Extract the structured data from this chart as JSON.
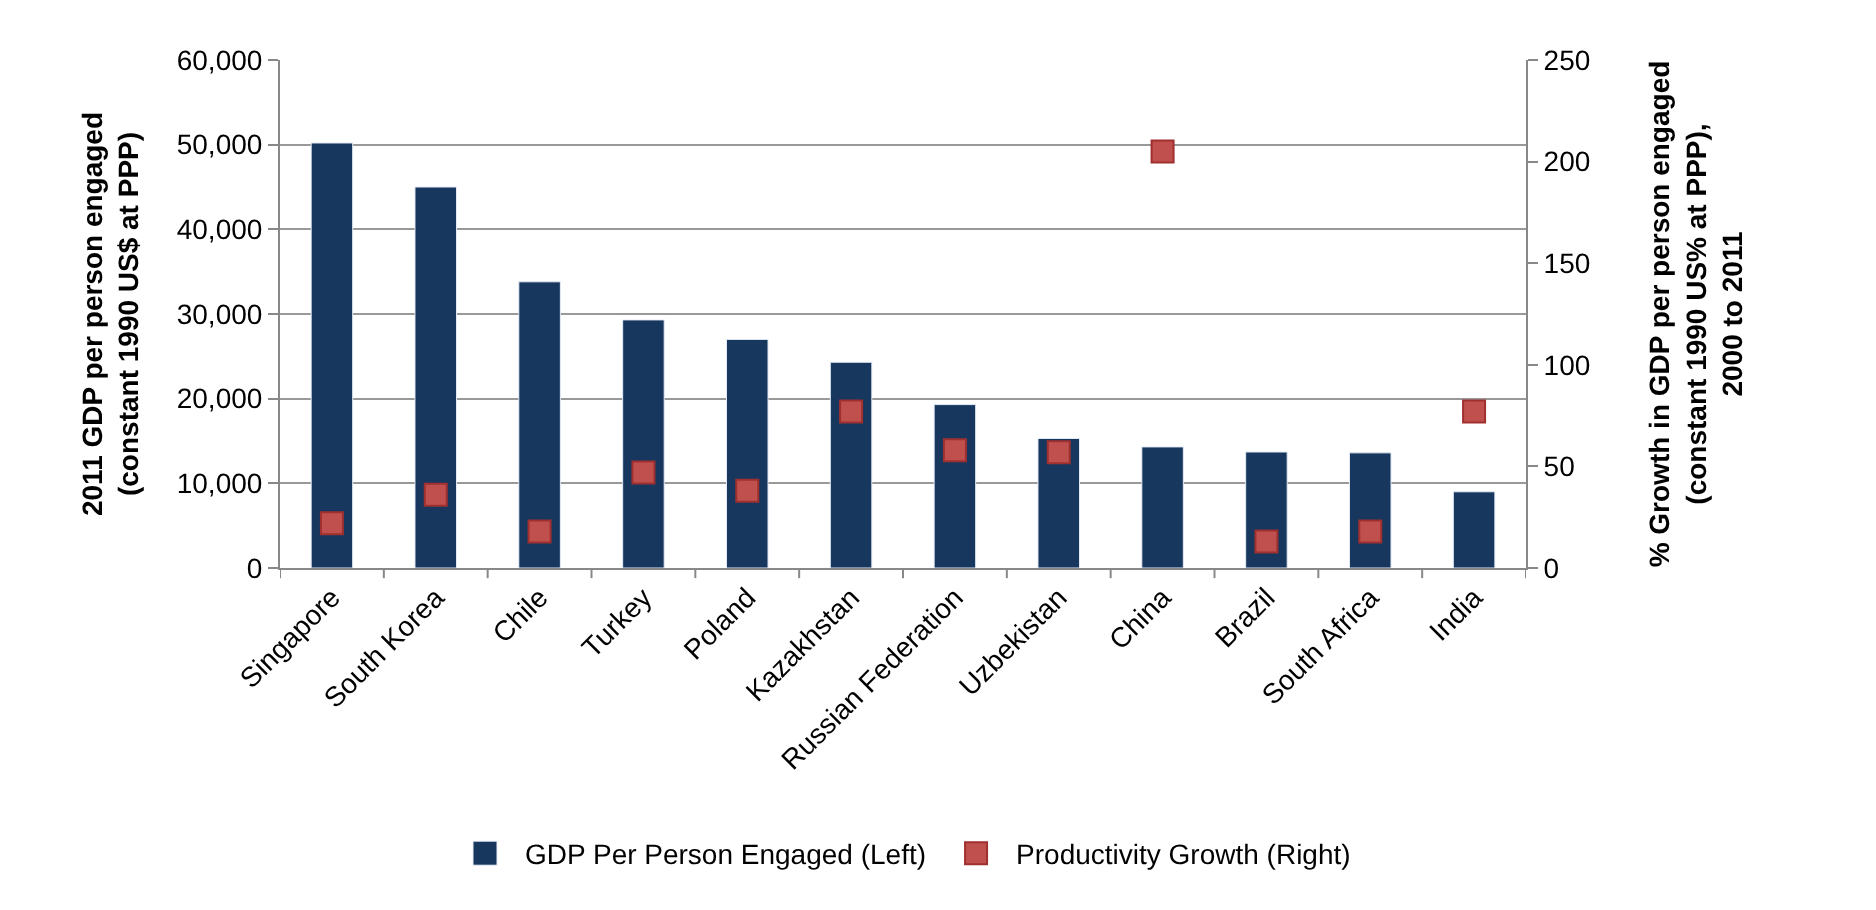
{
  "chart_data": {
    "type": "bar",
    "categories": [
      "Singapore",
      "South Korea",
      "Chile",
      "Turkey",
      "Poland",
      "Kazakhstan",
      "Russian Federation",
      "Uzbekistan",
      "China",
      "Brazil",
      "South Africa",
      "India"
    ],
    "series": [
      {
        "name": "GDP Per Person Engaged (Left)",
        "color": "#17375e",
        "values": [
          50200,
          45000,
          33800,
          29300,
          27000,
          24300,
          19300,
          15300,
          14300,
          13700,
          13600,
          9000
        ]
      },
      {
        "name": "Productivity Growth (Right)",
        "color": "#c0504d",
        "type": "scatter",
        "axis": "y2",
        "marker": "square",
        "values": [
          22,
          36,
          18,
          47,
          38,
          77,
          58,
          57,
          205,
          13,
          18,
          77
        ]
      }
    ],
    "ylabel": "2011 GDP per person engaged\n(constant 1990 US$ at PPP)",
    "y2label": "% Growth in GDP per person engaged\n(constant 1990 US% at PPP),\n2000 to 2011",
    "ylim": [
      0,
      60000
    ],
    "yticks": [
      {
        "value": 0,
        "label": "0"
      },
      {
        "value": 10000,
        "label": "10,000"
      },
      {
        "value": 20000,
        "label": "20,000"
      },
      {
        "value": 30000,
        "label": "30,000"
      },
      {
        "value": 40000,
        "label": "40,000"
      },
      {
        "value": 50000,
        "label": "50,000"
      },
      {
        "value": 60000,
        "label": "60,000"
      }
    ],
    "y2lim": [
      0,
      250
    ],
    "y2ticks": [
      0,
      50,
      100,
      150,
      200,
      250
    ],
    "grid": "y",
    "legend": "bottom"
  }
}
